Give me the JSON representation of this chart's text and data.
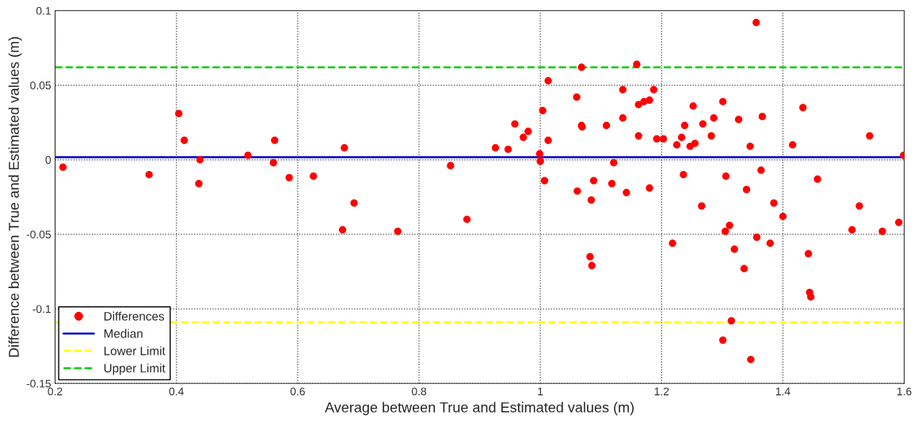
{
  "chart_data": {
    "type": "scatter",
    "xlabel": "Average between True and Estimated values (m)",
    "ylabel": "Difference between True and Estimated values (m)",
    "xlim": [
      0.2,
      1.6
    ],
    "xticks": [
      0.2,
      0.4,
      0.6,
      0.8,
      1,
      1.2,
      1.4,
      1.6
    ],
    "ylim": [
      -0.15,
      0.1
    ],
    "yticks": [
      -0.15,
      -0.1,
      -0.05,
      0,
      0.05,
      0.1
    ],
    "grid": true,
    "legend": "bottom left",
    "marker": "circle",
    "series": [
      {
        "name": "Differences",
        "color": "#ff0000",
        "x": [
          0.213,
          0.355,
          0.404,
          0.413,
          0.439,
          0.437,
          0.518,
          0.56,
          0.562,
          0.586,
          0.626,
          0.674,
          0.677,
          0.693,
          0.765,
          0.852,
          0.879,
          1.356,
          1.068,
          1.159,
          1.013,
          1.06,
          1.136,
          1.187,
          1.162,
          1.171,
          1.18,
          1.252,
          1.301,
          1.433,
          1.004,
          0.958,
          1.136,
          1.286,
          1.327,
          1.366,
          1.068,
          1.069,
          1.109,
          1.238,
          1.268,
          0.98,
          0.972,
          1.162,
          1.192,
          1.203,
          1.233,
          1.282,
          1.543,
          1.013,
          1.225,
          1.247,
          1.255,
          1.346,
          1.416,
          0.926,
          0.947,
          0.999,
          1.0,
          1.599,
          1.121,
          1.007,
          1.088,
          1.118,
          1.061,
          1.142,
          1.18,
          1.236,
          1.306,
          1.364,
          1.457,
          1.084,
          1.34,
          1.266,
          1.385,
          1.526,
          1.4,
          1.591,
          1.312,
          1.305,
          1.514,
          1.564,
          1.357,
          1.379,
          1.218,
          1.32,
          1.442,
          1.082,
          1.085,
          1.336,
          1.444,
          1.446,
          1.315,
          1.301,
          1.347
        ],
        "values": [
          -0.005,
          -0.01,
          0.031,
          0.013,
          0.0,
          -0.016,
          0.003,
          -0.002,
          0.013,
          -0.012,
          -0.011,
          -0.047,
          0.008,
          -0.029,
          -0.048,
          -0.004,
          -0.04,
          0.092,
          0.062,
          0.064,
          0.053,
          0.042,
          0.047,
          0.047,
          0.037,
          0.039,
          0.04,
          0.036,
          0.039,
          0.035,
          0.033,
          0.024,
          0.028,
          0.028,
          0.027,
          0.029,
          0.023,
          0.022,
          0.023,
          0.023,
          0.024,
          0.019,
          0.015,
          0.016,
          0.014,
          0.014,
          0.015,
          0.016,
          0.016,
          0.013,
          0.01,
          0.009,
          0.011,
          0.009,
          0.01,
          0.008,
          0.007,
          0.004,
          -0.001,
          0.003,
          -0.002,
          -0.014,
          -0.014,
          -0.016,
          -0.021,
          -0.022,
          -0.019,
          -0.01,
          -0.011,
          -0.007,
          -0.013,
          -0.027,
          -0.02,
          -0.031,
          -0.029,
          -0.031,
          -0.038,
          -0.042,
          -0.044,
          -0.048,
          -0.047,
          -0.048,
          -0.052,
          -0.056,
          -0.056,
          -0.06,
          -0.063,
          -0.065,
          -0.071,
          -0.073,
          -0.089,
          -0.092,
          -0.108,
          -0.121,
          -0.134
        ]
      }
    ],
    "ref_lines": [
      {
        "axis": "y",
        "value": 0.0017,
        "label": "Median",
        "color": "#0000cc",
        "line_style": "solid"
      },
      {
        "axis": "y",
        "value": -0.109,
        "label": "Lower Limit",
        "color": "#ffff00",
        "line_style": "dashed"
      },
      {
        "axis": "y",
        "value": 0.062,
        "label": "Upper Limit",
        "color": "#00cc00",
        "line_style": "dashed"
      }
    ]
  }
}
